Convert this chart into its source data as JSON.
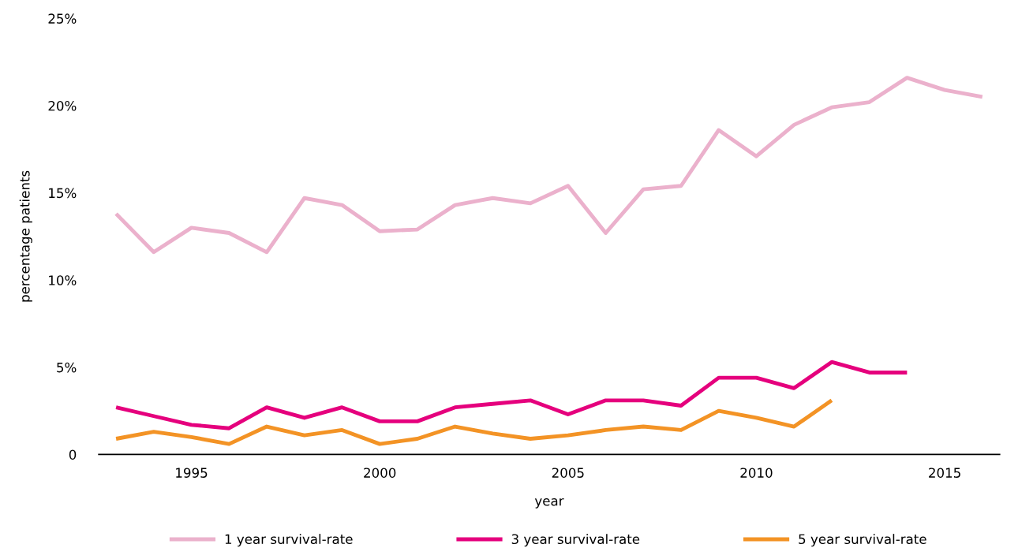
{
  "chart_data": {
    "type": "line",
    "xlabel": "year",
    "ylabel": "percentage patients",
    "x": [
      1993,
      1994,
      1995,
      1996,
      1997,
      1998,
      1999,
      2000,
      2001,
      2002,
      2003,
      2004,
      2005,
      2006,
      2007,
      2008,
      2009,
      2010,
      2011,
      2012,
      2013,
      2014,
      2015,
      2016
    ],
    "xlim": [
      1992.54,
      2016.46
    ],
    "xticks": [
      1995,
      2000,
      2005,
      2010,
      2015
    ],
    "ylim": [
      0,
      25
    ],
    "yticks": [
      {
        "value": 0,
        "label": "0"
      },
      {
        "value": 5,
        "label": "5%"
      },
      {
        "value": 10,
        "label": "10%"
      },
      {
        "value": 15,
        "label": "15%"
      },
      {
        "value": 20,
        "label": "20%"
      },
      {
        "value": 25,
        "label": "25%"
      }
    ],
    "grid": false,
    "legend": "bottom",
    "marker": "none",
    "line_style": "solid",
    "series": [
      {
        "name": "1 year survival-rate",
        "color": "#ebb1cc",
        "values": [
          13.8,
          11.6,
          13.0,
          12.7,
          11.6,
          14.7,
          14.3,
          12.8,
          12.9,
          14.3,
          14.7,
          14.4,
          15.4,
          12.7,
          15.2,
          15.4,
          18.6,
          17.1,
          18.9,
          19.9,
          20.2,
          21.6,
          20.9,
          20.5
        ]
      },
      {
        "name": "3 year survival-rate",
        "color": "#e5007d",
        "values": [
          2.7,
          2.2,
          1.7,
          1.5,
          2.7,
          2.1,
          2.7,
          1.9,
          1.9,
          2.7,
          2.9,
          3.1,
          2.3,
          3.1,
          3.1,
          2.8,
          4.4,
          4.4,
          3.8,
          5.3,
          4.7,
          4.7,
          null,
          null
        ]
      },
      {
        "name": "5 year survival-rate",
        "color": "#f39325",
        "values": [
          0.9,
          1.3,
          1.0,
          0.6,
          1.6,
          1.1,
          1.4,
          0.6,
          0.9,
          1.6,
          1.2,
          0.9,
          1.1,
          1.4,
          1.6,
          1.4,
          2.5,
          2.1,
          1.6,
          3.1,
          null,
          null,
          null,
          null
        ]
      }
    ]
  }
}
